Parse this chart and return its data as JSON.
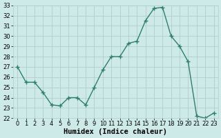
{
  "title": "",
  "xlabel": "Humidex (Indice chaleur)",
  "x": [
    0,
    1,
    2,
    3,
    4,
    5,
    6,
    7,
    8,
    9,
    10,
    11,
    12,
    13,
    14,
    15,
    16,
    17,
    18,
    19,
    20,
    21,
    22,
    23
  ],
  "y": [
    27.0,
    25.5,
    25.5,
    24.5,
    23.3,
    23.2,
    24.0,
    24.0,
    23.3,
    25.0,
    26.7,
    28.0,
    28.0,
    29.3,
    29.5,
    31.5,
    32.7,
    32.8,
    30.0,
    29.0,
    27.5,
    22.2,
    22.0,
    22.5
  ],
  "line_color": "#2d7d6e",
  "marker": "+",
  "marker_size": 4,
  "bg_color": "#ceeae8",
  "grid_color": "#b0cece",
  "ylim": [
    22,
    33
  ],
  "yticks": [
    22,
    23,
    24,
    25,
    26,
    27,
    28,
    29,
    30,
    31,
    32,
    33
  ],
  "xlim": [
    -0.5,
    23.5
  ],
  "xticks": [
    0,
    1,
    2,
    3,
    4,
    5,
    6,
    7,
    8,
    9,
    10,
    11,
    12,
    13,
    14,
    15,
    16,
    17,
    18,
    19,
    20,
    21,
    22,
    23
  ],
  "xlabel_fontsize": 7.5,
  "tick_fontsize": 6,
  "line_width": 1.0
}
